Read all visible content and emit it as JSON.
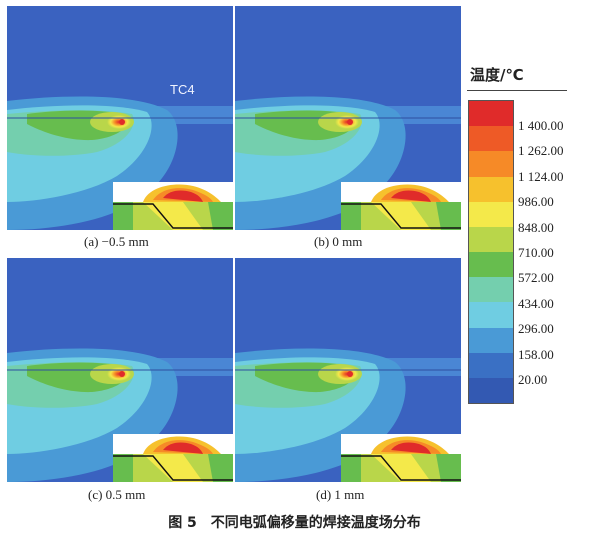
{
  "material_label": "TC4",
  "panels": [
    {
      "caption": "(a) −0.5 mm"
    },
    {
      "caption": "(b) 0 mm"
    },
    {
      "caption": "(c) 0.5 mm"
    },
    {
      "caption": "(d) 1 mm"
    }
  ],
  "legend": {
    "title": "温度/℃",
    "ticks": [
      "1 400.00",
      "1 262.00",
      "1 124.00",
      "986.00",
      "848.00",
      "710.00",
      "572.00",
      "434.00",
      "296.00",
      "158.00",
      "20.00"
    ],
    "colors": [
      "#e02b2a",
      "#ee5a26",
      "#f68a27",
      "#f6c12d",
      "#f4e94a",
      "#b9d64a",
      "#67bd4e",
      "#74cfae",
      "#6fcde2",
      "#4a9ad6",
      "#3a70c4",
      "#3359b2"
    ]
  },
  "figure_title": "图 5　不同电弧偏移量的焊接温度场分布"
}
